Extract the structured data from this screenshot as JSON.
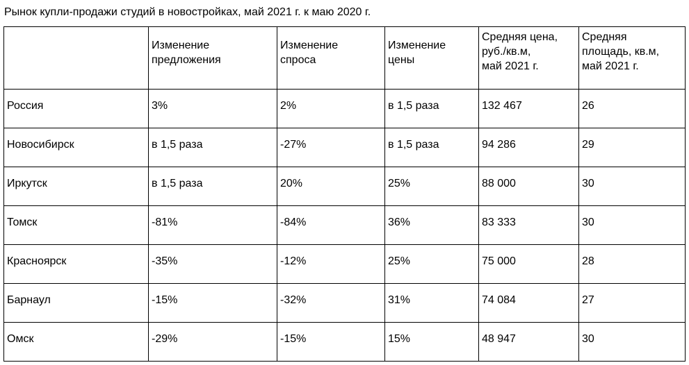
{
  "title": "Рынок купли-продажи  студий в новостройках, май 2021 г. к маю 2020 г.",
  "table": {
    "header": [
      "Изменение\nпредложения",
      "Изменение\nспроса",
      "Изменение\nцены",
      "Средняя цена,\nруб./кв.м,\nмай 2021 г.",
      "Средняя\nплощадь, кв.м,\nмай 2021 г."
    ],
    "rows": [
      [
        "Россия",
        "3%",
        "2%",
        "в 1,5 раза",
        "132 467",
        "26"
      ],
      [
        "Новосибирск",
        "в 1,5 раза",
        "-27%",
        "в 1,5 раза",
        "94 286",
        "29"
      ],
      [
        "Иркутск",
        "в 1,5 раза",
        "20%",
        "25%",
        "88 000",
        "30"
      ],
      [
        "Томск",
        "-81%",
        "-84%",
        "36%",
        "83 333",
        "30"
      ],
      [
        "Красноярск",
        "-35%",
        "-12%",
        "25%",
        "75 000",
        "28"
      ],
      [
        "Барнаул",
        "-15%",
        "-32%",
        "31%",
        "74 084",
        "27"
      ],
      [
        "Омск",
        "-29%",
        "-15%",
        "15%",
        "48 947",
        "30"
      ]
    ]
  }
}
